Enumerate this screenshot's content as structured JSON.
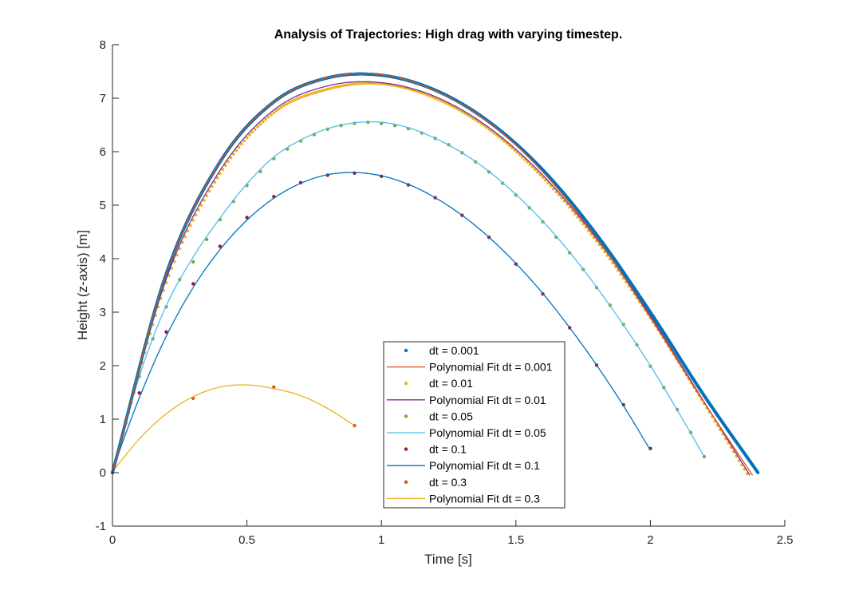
{
  "chart_data": {
    "type": "line",
    "title": "Analysis of Trajectories: High drag with varying timestep.",
    "xlabel": "Time [s]",
    "ylabel": "Height (z-axis) [m]",
    "xlim": [
      0,
      2.5
    ],
    "ylim": [
      -1,
      8
    ],
    "xticks": [
      "0",
      "0.5",
      "1",
      "1.5",
      "2",
      "2.5"
    ],
    "yticks": [
      "-1",
      "0",
      "1",
      "2",
      "3",
      "4",
      "5",
      "6",
      "7",
      "8"
    ],
    "grid": false,
    "legend_position": "bottom-center",
    "series": [
      {
        "name": "dt = 0.001",
        "kind": "points",
        "color": "#0072BD",
        "dt": 0.001,
        "x": [
          0,
          0.2,
          0.4,
          0.6,
          0.8,
          1.0,
          1.2,
          1.4,
          1.6,
          1.8,
          2.0,
          2.2,
          2.4
        ],
        "y": [
          0,
          3.72,
          5.81,
          6.93,
          7.38,
          7.43,
          7.15,
          6.56,
          5.66,
          4.45,
          3.0,
          1.44,
          0
        ]
      },
      {
        "name": "Polynomial Fit dt = 0.001",
        "kind": "line",
        "color": "#D95319",
        "x": [
          0,
          0.2,
          0.4,
          0.6,
          0.8,
          1.0,
          1.2,
          1.4,
          1.6,
          1.8,
          2.0,
          2.2,
          2.38
        ],
        "y": [
          0,
          3.72,
          5.81,
          6.93,
          7.38,
          7.44,
          7.14,
          6.55,
          5.62,
          4.39,
          2.9,
          1.31,
          -0.05
        ]
      },
      {
        "name": "dt = 0.01",
        "kind": "points",
        "color": "#EDB120",
        "dt": 0.01,
        "x": [
          0,
          0.2,
          0.4,
          0.6,
          0.8,
          1.0,
          1.2,
          1.4,
          1.6,
          1.8,
          2.0,
          2.2,
          2.36
        ],
        "y": [
          0,
          3.55,
          5.59,
          6.73,
          7.17,
          7.27,
          7.0,
          6.42,
          5.52,
          4.33,
          2.89,
          1.29,
          -0.02
        ]
      },
      {
        "name": "Polynomial Fit dt = 0.01",
        "kind": "line",
        "color": "#7E2F8E",
        "x": [
          0,
          0.2,
          0.4,
          0.6,
          0.8,
          1.0,
          1.2,
          1.4,
          1.6,
          1.8,
          2.0,
          2.2,
          2.37
        ],
        "y": [
          0,
          3.62,
          5.65,
          6.78,
          7.23,
          7.29,
          7.03,
          6.45,
          5.56,
          4.37,
          2.93,
          1.32,
          -0.05
        ]
      },
      {
        "name": "dt = 0.05",
        "kind": "points",
        "color": "#77AC30",
        "dt": 0.05,
        "x": [
          0,
          0.05,
          0.1,
          0.15,
          0.2,
          0.25,
          0.3,
          0.35,
          0.4,
          0.45,
          0.5,
          0.55,
          0.6,
          0.65,
          0.7,
          0.75,
          0.8,
          0.85,
          0.9,
          0.95,
          1.0,
          1.05,
          1.1,
          1.15,
          1.2,
          1.25,
          1.3,
          1.35,
          1.4,
          1.45,
          1.5,
          1.55,
          1.6,
          1.65,
          1.7,
          1.75,
          1.8,
          1.85,
          1.9,
          1.95,
          2.0,
          2.05,
          2.1,
          2.15,
          2.2
        ],
        "y": [
          0,
          0.98,
          1.8,
          2.5,
          3.1,
          3.61,
          3.94,
          4.36,
          4.73,
          5.07,
          5.37,
          5.63,
          5.87,
          6.05,
          6.2,
          6.32,
          6.42,
          6.49,
          6.53,
          6.55,
          6.53,
          6.49,
          6.43,
          6.35,
          6.25,
          6.13,
          5.98,
          5.81,
          5.62,
          5.41,
          5.19,
          4.95,
          4.69,
          4.4,
          4.11,
          3.8,
          3.46,
          3.13,
          2.77,
          2.39,
          1.99,
          1.59,
          1.18,
          0.75,
          0.3
        ]
      },
      {
        "name": "Polynomial Fit dt = 0.05",
        "kind": "line",
        "color": "#4DBEEE",
        "x": [
          0,
          0.1,
          0.2,
          0.3,
          0.4,
          0.5,
          0.6,
          0.7,
          0.8,
          0.9,
          1.0,
          1.1,
          1.2,
          1.3,
          1.4,
          1.5,
          1.6,
          1.7,
          1.8,
          1.9,
          2.0,
          2.1,
          2.2
        ],
        "y": [
          0,
          1.8,
          3.12,
          4.03,
          4.76,
          5.4,
          5.9,
          6.22,
          6.43,
          6.54,
          6.55,
          6.45,
          6.25,
          5.98,
          5.63,
          5.2,
          4.7,
          4.12,
          3.47,
          2.76,
          2.0,
          1.17,
          0.3
        ]
      },
      {
        "name": "dt = 0.1",
        "kind": "points",
        "color": "#A2142F",
        "dt": 0.1,
        "x": [
          0,
          0.1,
          0.2,
          0.3,
          0.4,
          0.5,
          0.6,
          0.7,
          0.8,
          0.9,
          1.0,
          1.1,
          1.2,
          1.3,
          1.4,
          1.5,
          1.6,
          1.7,
          1.8,
          1.9,
          2.0
        ],
        "y": [
          0,
          1.49,
          2.63,
          3.53,
          4.23,
          4.77,
          5.16,
          5.42,
          5.56,
          5.6,
          5.54,
          5.38,
          5.14,
          4.81,
          4.4,
          3.9,
          3.34,
          2.71,
          2.01,
          1.27,
          0.45
        ]
      },
      {
        "name": "Polynomial Fit dt = 0.1",
        "kind": "line",
        "color": "#0072BD",
        "x": [
          0,
          0.1,
          0.2,
          0.3,
          0.4,
          0.5,
          0.6,
          0.7,
          0.8,
          0.9,
          1.0,
          1.1,
          1.2,
          1.3,
          1.4,
          1.5,
          1.6,
          1.7,
          1.8,
          1.9,
          2.0
        ],
        "y": [
          0.05,
          1.4,
          2.55,
          3.46,
          4.17,
          4.72,
          5.13,
          5.41,
          5.57,
          5.61,
          5.55,
          5.39,
          5.14,
          4.81,
          4.4,
          3.91,
          3.35,
          2.71,
          2.01,
          1.25,
          0.42
        ]
      },
      {
        "name": "dt = 0.3",
        "kind": "points",
        "color": "#D95319",
        "dt": 0.3,
        "x": [
          0,
          0.3,
          0.6,
          0.9
        ],
        "y": [
          0,
          1.39,
          1.6,
          0.88
        ]
      },
      {
        "name": "Polynomial Fit dt = 0.3",
        "kind": "line",
        "color": "#EDB120",
        "x": [
          0,
          0.1,
          0.2,
          0.3,
          0.4,
          0.5,
          0.6,
          0.7,
          0.8,
          0.9
        ],
        "y": [
          0.02,
          0.63,
          1.1,
          1.42,
          1.6,
          1.64,
          1.57,
          1.44,
          1.2,
          0.88
        ]
      }
    ]
  }
}
